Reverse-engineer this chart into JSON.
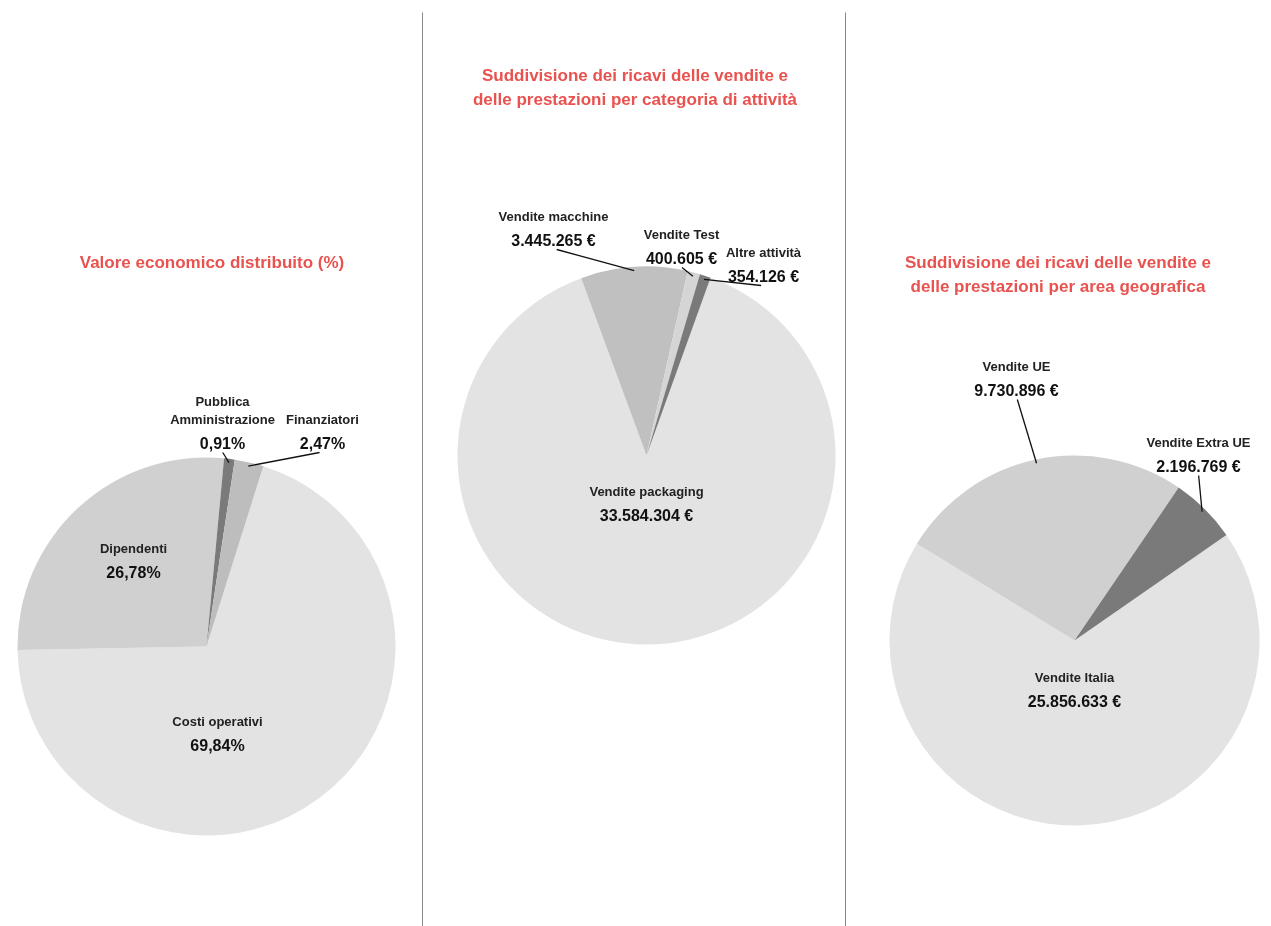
{
  "chart_data": [
    {
      "type": "pie",
      "title": "Valore economico distribuito (%)",
      "categories": [
        "Costi operativi",
        "Dipendenti",
        "Pubblica Amministrazione",
        "Finanziatori"
      ],
      "values": [
        69.84,
        26.78,
        0.91,
        2.47
      ],
      "colors": [
        "#e3e3e3",
        "#d0d0d0",
        "#7a7a7a",
        "#bdbdbd"
      ],
      "value_labels": [
        "69,84%",
        "26,78%",
        "0,91%",
        "2,47%"
      ]
    },
    {
      "type": "pie",
      "title": "Suddivisione dei ricavi delle vendite e delle prestazioni per categoria di attività",
      "categories": [
        "Vendite packaging",
        "Vendite macchine",
        "Vendite Test",
        "Altre attività"
      ],
      "values": [
        33584304,
        3445265,
        400605,
        354126
      ],
      "colors": [
        "#e3e3e3",
        "#c0c0c0",
        "#d5d5d5",
        "#7a7a7a"
      ],
      "value_labels": [
        "33.584.304 €",
        "3.445.265 €",
        "400.605 €",
        "354.126 €"
      ]
    },
    {
      "type": "pie",
      "title": "Suddivisione dei ricavi delle vendite e delle prestazioni per area geografica",
      "categories": [
        "Vendite Italia",
        "Vendite UE",
        "Vendite Extra UE"
      ],
      "values": [
        25856633,
        9730896,
        2196769
      ],
      "colors": [
        "#e3e3e3",
        "#d0d0d0",
        "#7a7a7a"
      ],
      "value_labels": [
        "25.856.633 €",
        "9.730.896 €",
        "2.196.769 €"
      ]
    }
  ]
}
